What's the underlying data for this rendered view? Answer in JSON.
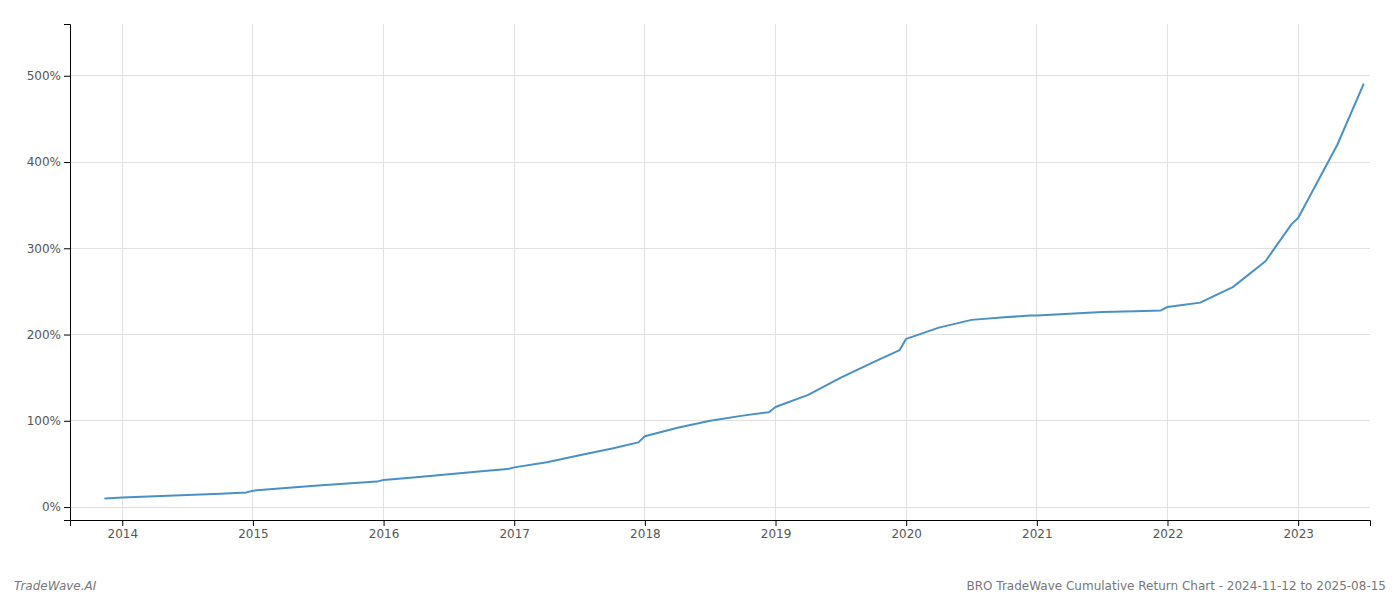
{
  "chart_data": {
    "type": "line",
    "x": [
      2013.87,
      2014.0,
      2014.25,
      2014.5,
      2014.75,
      2014.95,
      2015.0,
      2015.25,
      2015.5,
      2015.75,
      2015.95,
      2016.0,
      2016.25,
      2016.5,
      2016.75,
      2016.95,
      2017.0,
      2017.25,
      2017.5,
      2017.75,
      2017.95,
      2018.0,
      2018.25,
      2018.5,
      2018.75,
      2018.95,
      2019.0,
      2019.25,
      2019.5,
      2019.75,
      2019.95,
      2020.0,
      2020.25,
      2020.5,
      2020.75,
      2020.95,
      2021.0,
      2021.25,
      2021.5,
      2021.75,
      2021.95,
      2022.0,
      2022.1,
      2022.25,
      2022.5,
      2022.75,
      2022.95,
      2023.0,
      2023.3,
      2023.5
    ],
    "values": [
      0.1,
      0.11,
      0.125,
      0.14,
      0.155,
      0.17,
      0.19,
      0.22,
      0.25,
      0.275,
      0.295,
      0.315,
      0.345,
      0.38,
      0.415,
      0.44,
      0.46,
      0.52,
      0.6,
      0.68,
      0.75,
      0.82,
      0.92,
      1.0,
      1.06,
      1.1,
      1.16,
      1.3,
      1.5,
      1.68,
      1.82,
      1.95,
      2.08,
      2.17,
      2.2,
      2.22,
      2.22,
      2.24,
      2.26,
      2.27,
      2.28,
      2.32,
      2.34,
      2.37,
      2.55,
      2.85,
      3.28,
      3.35,
      4.2,
      4.9
    ],
    "color": "#4a90c4",
    "xlim": [
      2013.6,
      2023.55
    ],
    "ylim": [
      -0.15,
      5.6
    ],
    "xticks": [
      2014,
      2015,
      2016,
      2017,
      2018,
      2019,
      2020,
      2021,
      2022,
      2023
    ],
    "yticks": [
      {
        "value": 0.0,
        "label": "0%"
      },
      {
        "value": 1.0,
        "label": "100%"
      },
      {
        "value": 2.0,
        "label": "200%"
      },
      {
        "value": 3.0,
        "label": "300%"
      },
      {
        "value": 4.0,
        "label": "400%"
      },
      {
        "value": 5.0,
        "label": "500%"
      }
    ],
    "grid": true,
    "annotations": [
      "TradeWave.AI",
      "BRO TradeWave Cumulative Return Chart - 2024-11-12 to 2025-08-15"
    ]
  }
}
